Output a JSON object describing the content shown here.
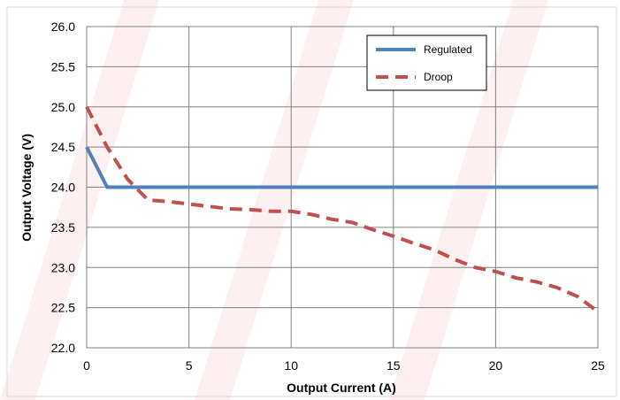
{
  "chart_data": {
    "type": "line",
    "xlabel": "Output Current (A)",
    "ylabel": "Output Voltage (V)",
    "xlim": [
      0,
      25
    ],
    "ylim": [
      22.0,
      26.0
    ],
    "x_ticks": [
      "0",
      "5",
      "10",
      "15",
      "20",
      "25"
    ],
    "y_ticks": [
      "22.0",
      "22.5",
      "23.0",
      "23.5",
      "24.0",
      "24.5",
      "25.0",
      "25.5",
      "26.0"
    ],
    "grid": true,
    "legend_position": "top-right",
    "series": [
      {
        "name": "Regulated",
        "color": "#4f81bd",
        "style": "solid",
        "points": [
          [
            0,
            24.5
          ],
          [
            1,
            24.0
          ],
          [
            25,
            24.0
          ]
        ]
      },
      {
        "name": "Droop",
        "color": "#c0504d",
        "style": "dashed",
        "points": [
          [
            0,
            25.0
          ],
          [
            1,
            24.5
          ],
          [
            2,
            24.1
          ],
          [
            3,
            23.84
          ],
          [
            4,
            23.82
          ],
          [
            5,
            23.79
          ],
          [
            6,
            23.76
          ],
          [
            7,
            23.73
          ],
          [
            8,
            23.72
          ],
          [
            9,
            23.7
          ],
          [
            10,
            23.7
          ],
          [
            11,
            23.66
          ],
          [
            12,
            23.6
          ],
          [
            13,
            23.56
          ],
          [
            14,
            23.47
          ],
          [
            15,
            23.39
          ],
          [
            16,
            23.3
          ],
          [
            17,
            23.22
          ],
          [
            18,
            23.1
          ],
          [
            19,
            23.0
          ],
          [
            20,
            22.95
          ],
          [
            21,
            22.87
          ],
          [
            22,
            22.82
          ],
          [
            23,
            22.75
          ],
          [
            24,
            22.64
          ],
          [
            25,
            22.45
          ]
        ]
      }
    ]
  }
}
